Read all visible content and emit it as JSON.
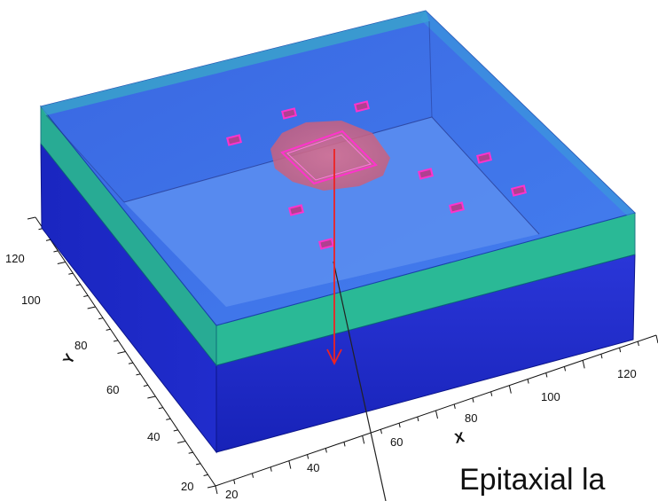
{
  "caption": {
    "text": "Epitaxial la"
  },
  "axes": {
    "x": {
      "title": "X",
      "ticks": [
        "20",
        "40",
        "60",
        "80",
        "100",
        "120"
      ]
    },
    "y": {
      "title": "Y",
      "ticks": [
        "20",
        "40",
        "60",
        "80",
        "100",
        "120"
      ]
    }
  },
  "colors": {
    "substrate": "#1a27c8",
    "epitaxial_layer": "#18b08a",
    "top_face": "#3a6ee8",
    "inner_floor": "#5a8df0",
    "implant_region": "#d86a86",
    "contact_pads": "#ff33cc",
    "arrow": "#ee2222"
  },
  "contact_pads_count": 9
}
